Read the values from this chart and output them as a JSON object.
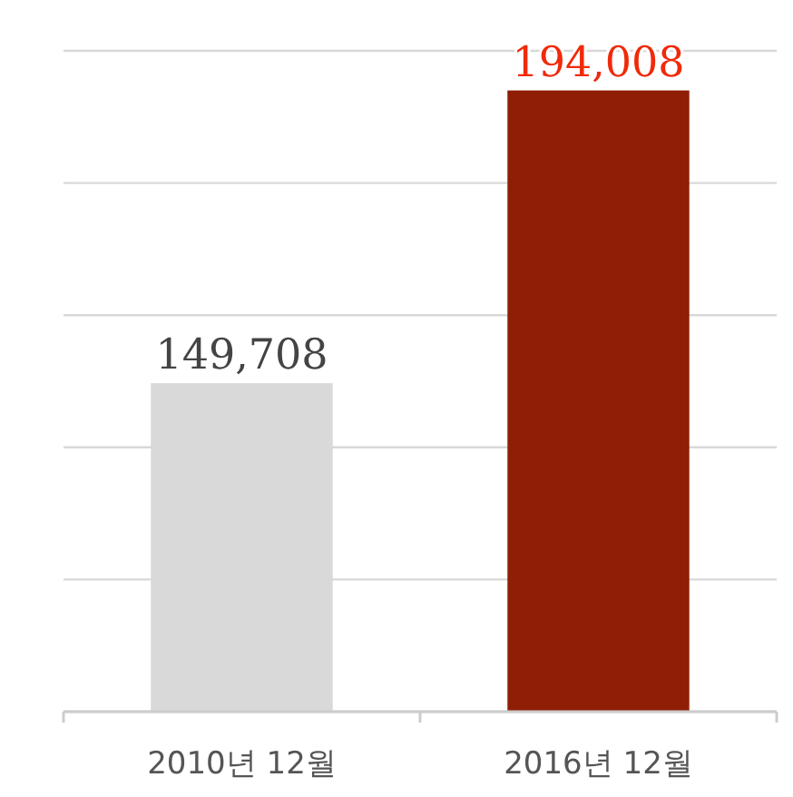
{
  "chart_data": {
    "type": "bar",
    "categories": [
      "2010년 12월",
      "2016년 12월"
    ],
    "values": [
      149708,
      194008
    ],
    "colors": [
      "#d9d9d9",
      "#8e1f04"
    ],
    "value_labels": [
      "149,708",
      "194,008"
    ],
    "ylim": [
      100000,
      200000
    ],
    "yticks": [
      {
        "value": 100000,
        "label": null
      },
      {
        "value": 120000,
        "label": null
      },
      {
        "value": 140000,
        "label": null
      },
      {
        "value": 160000,
        "label": null
      },
      {
        "value": 180000,
        "label": null
      },
      {
        "value": 200000,
        "label": null
      }
    ],
    "grid": "y"
  }
}
